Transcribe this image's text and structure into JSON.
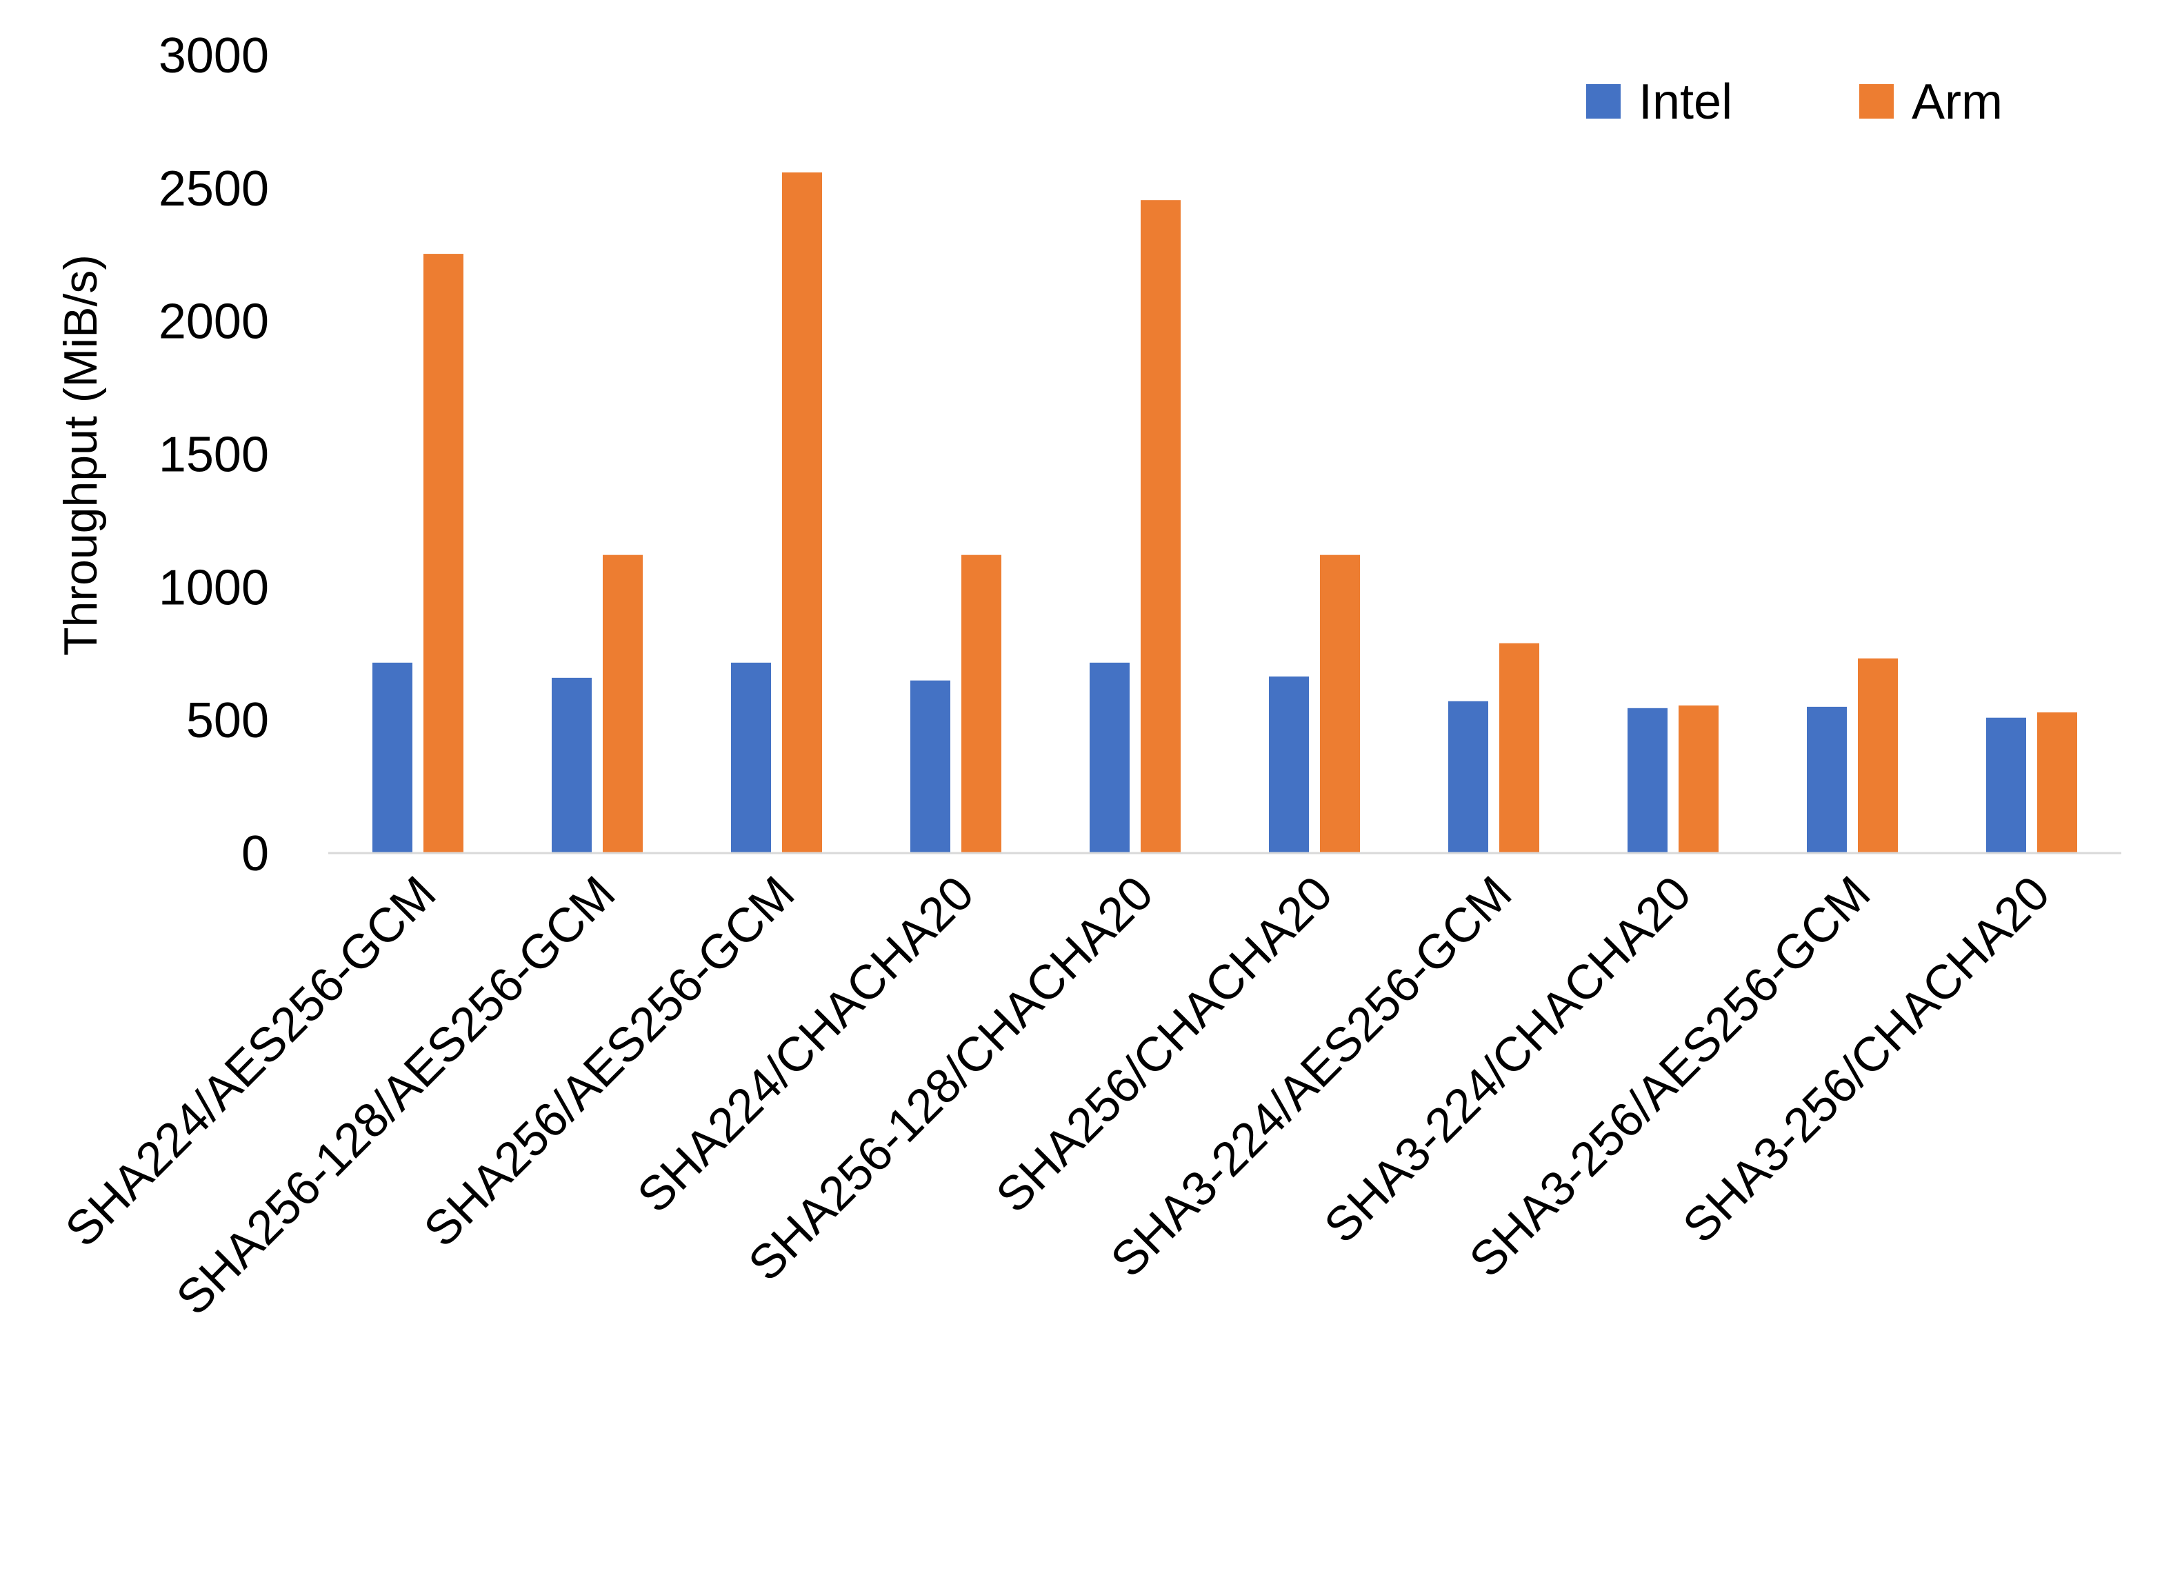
{
  "chart_data": {
    "type": "bar",
    "title": "",
    "xlabel": "",
    "ylabel": "Throughput (MiB/s)",
    "ylim": [
      0,
      3000
    ],
    "yticks": [
      0,
      500,
      1000,
      1500,
      2000,
      2500,
      3000
    ],
    "grid": false,
    "legend_position": "top-right",
    "categories": [
      "SHA224/AES256-GCM",
      "SHA256-128/AES256-GCM",
      "SHA256/AES256-GCM",
      "SHA224/CHACHA20",
      "SHA256-128/CHACHA20",
      "SHA256/CHACHA20",
      "SHA3-224/AES256-GCM",
      "SHA3-224/CHACHA20",
      "SHA3-256/AES256-GCM",
      "SHA3-256/CHACHA20"
    ],
    "series": [
      {
        "name": "Intel",
        "color": "#4472C4",
        "values": [
          716,
          659,
          716,
          649,
          716,
          664,
          571,
          545,
          550,
          509
        ]
      },
      {
        "name": "Arm",
        "color": "#ED7D31",
        "values": [
          2253,
          1121,
          2559,
          1121,
          2455,
          1121,
          789,
          555,
          732,
          529
        ]
      }
    ]
  }
}
